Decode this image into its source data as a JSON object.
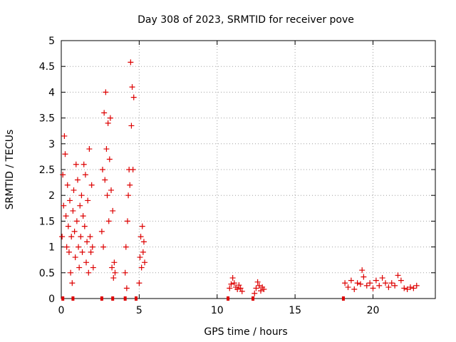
{
  "chart_data": {
    "type": "scatter",
    "title": "Day 308 of 2023, SRMTID for receiver pove",
    "xlabel": "GPS time / hours",
    "ylabel": "SRMTID / TECUs",
    "xlim": [
      0,
      24
    ],
    "ylim": [
      0,
      5
    ],
    "xticks": [
      0,
      5,
      10,
      15,
      20
    ],
    "xtick_labels": [
      "0",
      "5",
      "10",
      "15",
      "20"
    ],
    "yticks": [
      0,
      0.5,
      1,
      1.5,
      2,
      2.5,
      3,
      3.5,
      4,
      4.5,
      5
    ],
    "ytick_labels": [
      "0",
      "0.5",
      "1",
      "1.5",
      "2",
      "2.5",
      "3",
      "3.5",
      "4",
      "4.5",
      "5"
    ],
    "grid": true,
    "marker": "+",
    "series_color": "#dd0000",
    "zero_markers_x": [
      0.1,
      0.75,
      2.6,
      3.3,
      4.1,
      4.8,
      10.7,
      12.3,
      18.1
    ],
    "series": [
      {
        "name": "SRMTID",
        "points": [
          [
            0.05,
            1.2
          ],
          [
            0.1,
            2.4
          ],
          [
            0.15,
            1.8
          ],
          [
            0.2,
            3.15
          ],
          [
            0.25,
            2.8
          ],
          [
            0.3,
            1.6
          ],
          [
            0.35,
            1.0
          ],
          [
            0.4,
            2.2
          ],
          [
            0.45,
            1.4
          ],
          [
            0.5,
            0.9
          ],
          [
            0.55,
            1.9
          ],
          [
            0.6,
            0.5
          ],
          [
            0.65,
            1.2
          ],
          [
            0.7,
            0.3
          ],
          [
            0.75,
            1.7
          ],
          [
            0.8,
            2.1
          ],
          [
            0.85,
            1.3
          ],
          [
            0.9,
            0.8
          ],
          [
            0.95,
            2.6
          ],
          [
            1.0,
            1.5
          ],
          [
            1.05,
            2.3
          ],
          [
            1.1,
            1.0
          ],
          [
            1.15,
            0.6
          ],
          [
            1.2,
            1.8
          ],
          [
            1.25,
            1.2
          ],
          [
            1.3,
            2.0
          ],
          [
            1.35,
            0.9
          ],
          [
            1.4,
            1.6
          ],
          [
            1.45,
            2.6
          ],
          [
            1.5,
            1.4
          ],
          [
            1.55,
            2.4
          ],
          [
            1.6,
            0.7
          ],
          [
            1.65,
            1.1
          ],
          [
            1.7,
            1.9
          ],
          [
            1.75,
            0.5
          ],
          [
            1.8,
            2.9
          ],
          [
            1.85,
            1.2
          ],
          [
            1.9,
            0.9
          ],
          [
            1.95,
            2.2
          ],
          [
            2.0,
            1.0
          ],
          [
            2.05,
            0.6
          ],
          [
            2.6,
            1.3
          ],
          [
            2.65,
            2.5
          ],
          [
            2.7,
            1.0
          ],
          [
            2.75,
            3.6
          ],
          [
            2.8,
            2.3
          ],
          [
            2.85,
            4.0
          ],
          [
            2.9,
            2.9
          ],
          [
            2.95,
            2.0
          ],
          [
            3.0,
            3.4
          ],
          [
            3.05,
            1.5
          ],
          [
            3.1,
            2.7
          ],
          [
            3.15,
            3.5
          ],
          [
            3.2,
            2.1
          ],
          [
            3.25,
            0.6
          ],
          [
            3.3,
            1.7
          ],
          [
            3.35,
            0.4
          ],
          [
            3.4,
            0.7
          ],
          [
            3.45,
            0.5
          ],
          [
            4.1,
            0.5
          ],
          [
            4.15,
            1.0
          ],
          [
            4.2,
            0.2
          ],
          [
            4.25,
            1.5
          ],
          [
            4.3,
            2.0
          ],
          [
            4.35,
            2.5
          ],
          [
            4.4,
            2.2
          ],
          [
            4.45,
            4.58
          ],
          [
            4.5,
            3.35
          ],
          [
            4.55,
            4.1
          ],
          [
            4.6,
            2.5
          ],
          [
            4.65,
            3.9
          ],
          [
            5.0,
            0.3
          ],
          [
            5.05,
            0.8
          ],
          [
            5.1,
            1.2
          ],
          [
            5.15,
            0.6
          ],
          [
            5.2,
            1.4
          ],
          [
            5.25,
            0.9
          ],
          [
            5.3,
            1.1
          ],
          [
            5.35,
            0.7
          ],
          [
            10.8,
            0.2
          ],
          [
            10.9,
            0.28
          ],
          [
            11.0,
            0.4
          ],
          [
            11.1,
            0.3
          ],
          [
            11.2,
            0.22
          ],
          [
            11.3,
            0.18
          ],
          [
            11.4,
            0.26
          ],
          [
            11.5,
            0.2
          ],
          [
            11.6,
            0.14
          ],
          [
            12.4,
            0.1
          ],
          [
            12.5,
            0.2
          ],
          [
            12.6,
            0.32
          ],
          [
            12.7,
            0.25
          ],
          [
            12.8,
            0.15
          ],
          [
            12.9,
            0.22
          ],
          [
            13.0,
            0.18
          ],
          [
            18.2,
            0.3
          ],
          [
            18.4,
            0.22
          ],
          [
            18.6,
            0.35
          ],
          [
            18.8,
            0.18
          ],
          [
            19.0,
            0.3
          ],
          [
            19.2,
            0.28
          ],
          [
            19.3,
            0.55
          ],
          [
            19.4,
            0.42
          ],
          [
            19.6,
            0.25
          ],
          [
            19.8,
            0.3
          ],
          [
            20.0,
            0.2
          ],
          [
            20.2,
            0.35
          ],
          [
            20.4,
            0.25
          ],
          [
            20.6,
            0.4
          ],
          [
            20.8,
            0.3
          ],
          [
            21.0,
            0.22
          ],
          [
            21.2,
            0.3
          ],
          [
            21.4,
            0.25
          ],
          [
            21.6,
            0.45
          ],
          [
            21.8,
            0.35
          ],
          [
            22.0,
            0.2
          ],
          [
            22.2,
            0.18
          ],
          [
            22.4,
            0.22
          ],
          [
            22.6,
            0.2
          ],
          [
            22.8,
            0.25
          ]
        ]
      }
    ]
  }
}
